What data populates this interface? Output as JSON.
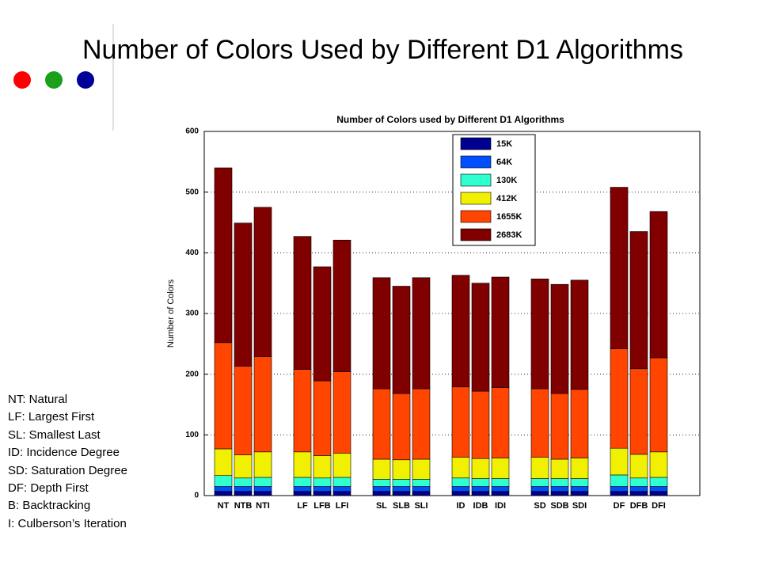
{
  "slide_title": "Number of Colors Used by Different D1 Algorithms",
  "notes": [
    "NT: Natural",
    "LF: Largest First",
    "SL: Smallest Last",
    "ID: Incidence Degree",
    "SD: Saturation Degree",
    "DF: Depth First",
    "B: Backtracking",
    "I:  Culberson’s Iteration"
  ],
  "chart_data": {
    "type": "stacked_bar",
    "title": "Number of Colors used by Different D1 Algorithms",
    "ylabel": "Number of Colors",
    "categories": [
      "NT",
      "NTB",
      "NTI",
      null,
      "LF",
      "LFB",
      "LFI",
      null,
      "SL",
      "SLB",
      "SLI",
      null,
      "ID",
      "IDB",
      "IDI",
      null,
      "SD",
      "SDB",
      "SDI",
      null,
      "DF",
      "DFB",
      "DFI"
    ],
    "series": [
      {
        "name": "15K",
        "color": "#00008f",
        "values": [
          7,
          7,
          7,
          null,
          7,
          7,
          7,
          null,
          7,
          7,
          7,
          null,
          7,
          7,
          7,
          null,
          7,
          7,
          7,
          null,
          7,
          7,
          7
        ]
      },
      {
        "name": "64K",
        "color": "#0050ff",
        "values": [
          8,
          8,
          8,
          null,
          8,
          8,
          8,
          null,
          8,
          8,
          8,
          null,
          8,
          8,
          8,
          null,
          8,
          8,
          8,
          null,
          8,
          8,
          8
        ]
      },
      {
        "name": "130K",
        "color": "#30ffd0",
        "values": [
          18,
          14,
          15,
          null,
          15,
          14,
          15,
          null,
          12,
          12,
          12,
          null,
          14,
          13,
          13,
          null,
          13,
          13,
          13,
          null,
          19,
          14,
          15
        ]
      },
      {
        "name": "412K",
        "color": "#f0f000",
        "values": [
          44,
          38,
          42,
          null,
          42,
          37,
          40,
          null,
          33,
          32,
          33,
          null,
          34,
          33,
          34,
          null,
          35,
          32,
          34,
          null,
          44,
          39,
          42
        ]
      },
      {
        "name": "1655K",
        "color": "#ff4500",
        "values": [
          175,
          146,
          157,
          null,
          136,
          123,
          134,
          null,
          116,
          109,
          116,
          null,
          116,
          111,
          116,
          null,
          113,
          108,
          113,
          null,
          164,
          141,
          155
        ]
      },
      {
        "name": "2683K",
        "color": "#800000",
        "values": [
          288,
          236,
          246,
          null,
          219,
          188,
          217,
          null,
          183,
          177,
          183,
          null,
          184,
          178,
          182,
          null,
          181,
          180,
          180,
          null,
          266,
          226,
          241
        ]
      }
    ],
    "ylim": [
      0,
      600
    ],
    "yticks": [
      0,
      100,
      200,
      300,
      400,
      500,
      600
    ],
    "grid": true,
    "legend": "upper right"
  }
}
